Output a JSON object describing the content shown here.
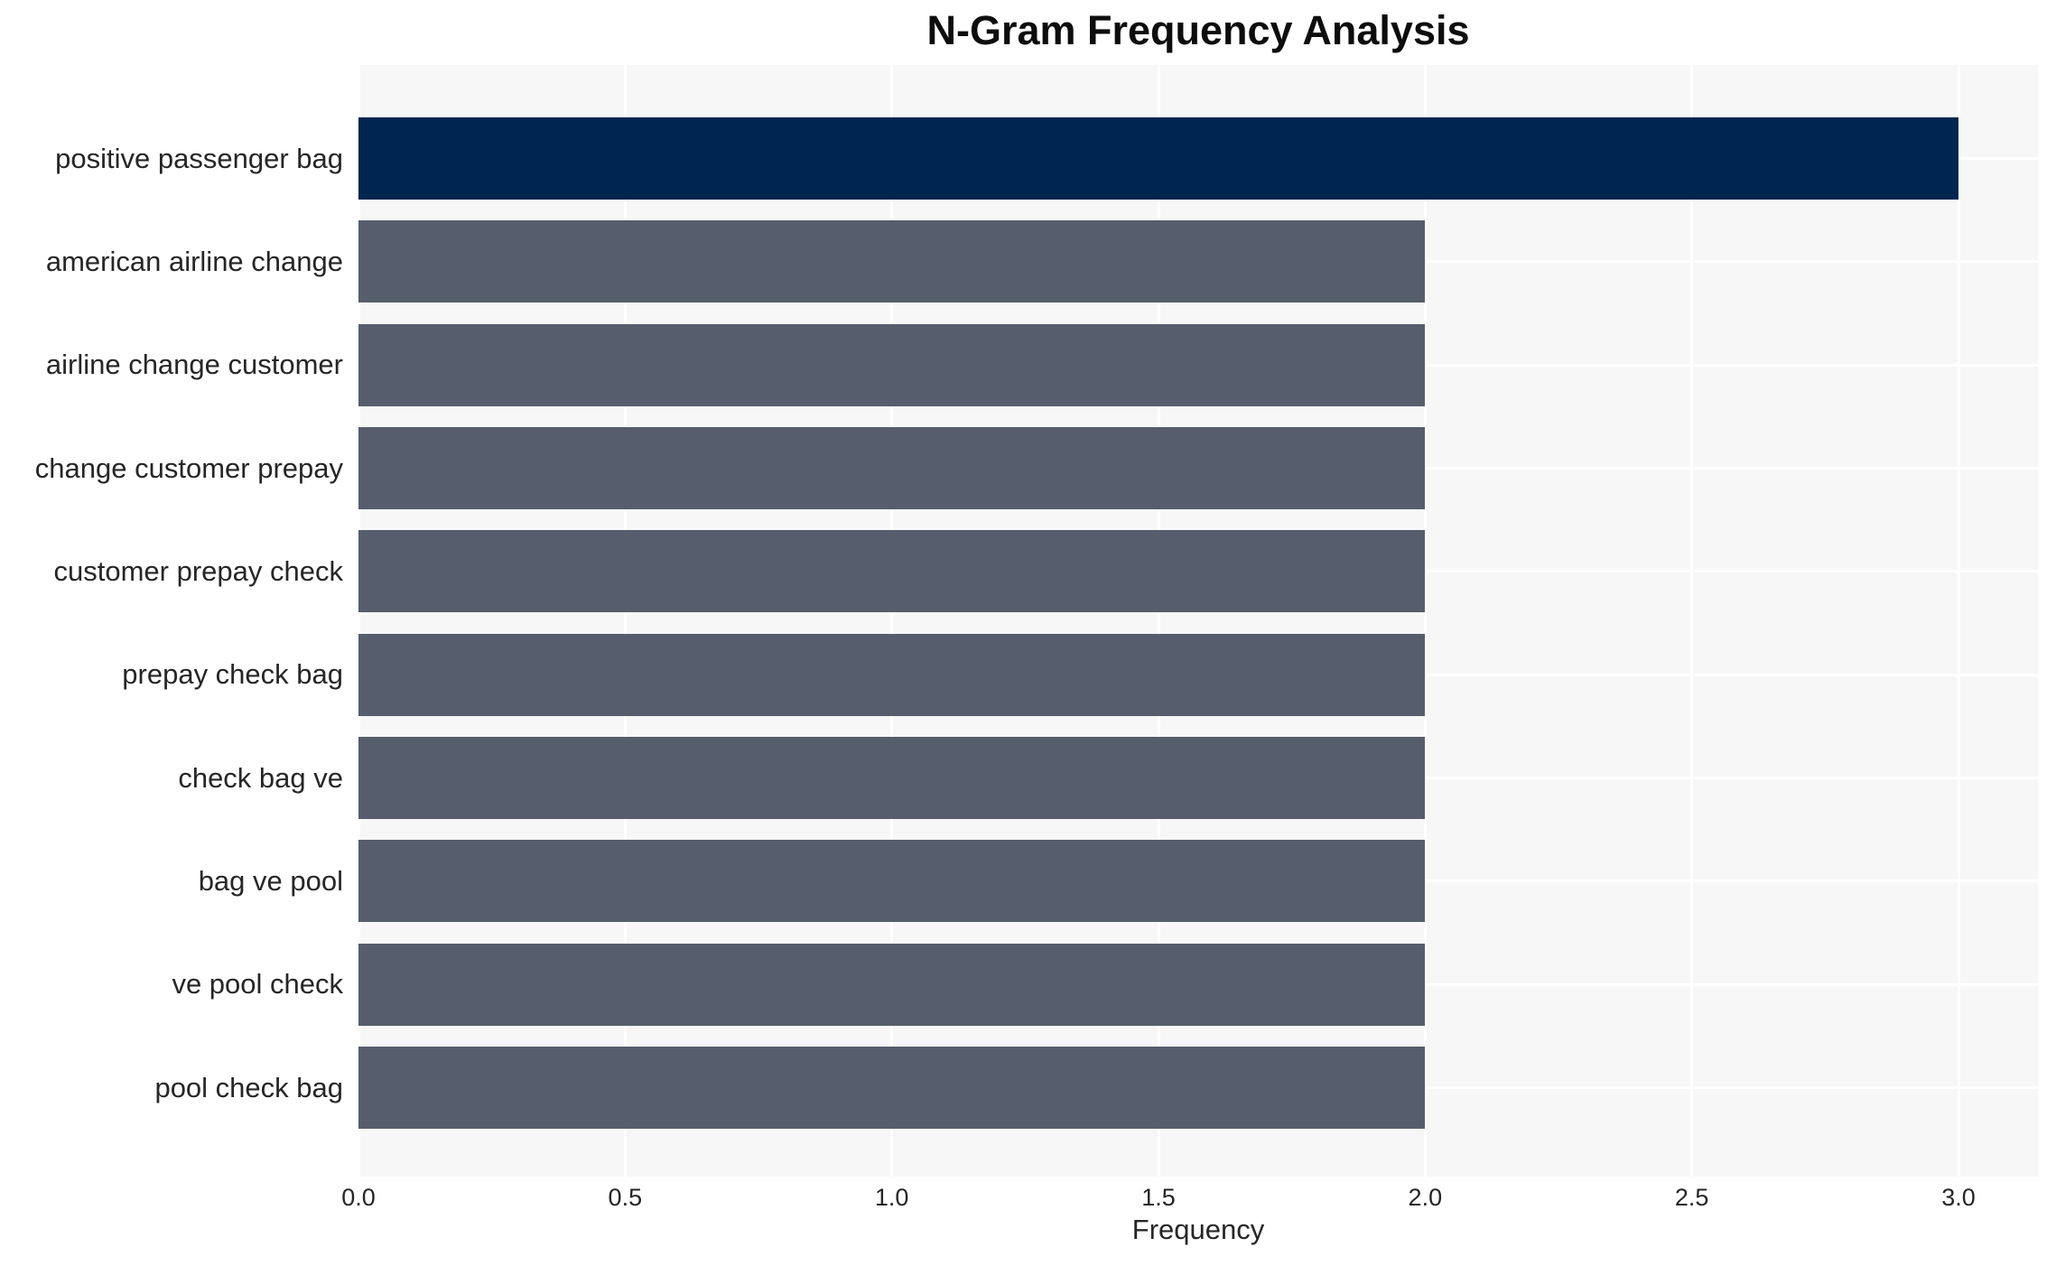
{
  "chart_data": {
    "type": "bar",
    "orientation": "horizontal",
    "title": "N-Gram Frequency Analysis",
    "xlabel": "Frequency",
    "ylabel": "",
    "categories": [
      "positive passenger bag",
      "american airline change",
      "airline change customer",
      "change customer prepay",
      "customer prepay check",
      "prepay check bag",
      "check bag ve",
      "bag ve pool",
      "ve pool check",
      "pool check bag"
    ],
    "values": [
      3,
      2,
      2,
      2,
      2,
      2,
      2,
      2,
      2,
      2
    ],
    "bar_colors": [
      "#00254e",
      "#565d6c",
      "#565d6c",
      "#565d6c",
      "#565d6c",
      "#565d6c",
      "#565d6c",
      "#565d6c",
      "#565d6c",
      "#565d6c"
    ],
    "xlim": [
      0,
      3.15
    ],
    "xticks": [
      0,
      0.5,
      1,
      1.5,
      2,
      2.5,
      3
    ],
    "xtick_labels": [
      "0.0",
      "0.5",
      "1.0",
      "1.5",
      "2.0",
      "2.5",
      "3.0"
    ],
    "grid": true,
    "legend": null,
    "colors": {
      "plot_background": "#f7f7f7",
      "grid_line": "#ffffff",
      "highlight_bar": "#00254e",
      "default_bar": "#565d6c",
      "label_text": "#262626",
      "title_text": "#0d0d0d"
    }
  }
}
